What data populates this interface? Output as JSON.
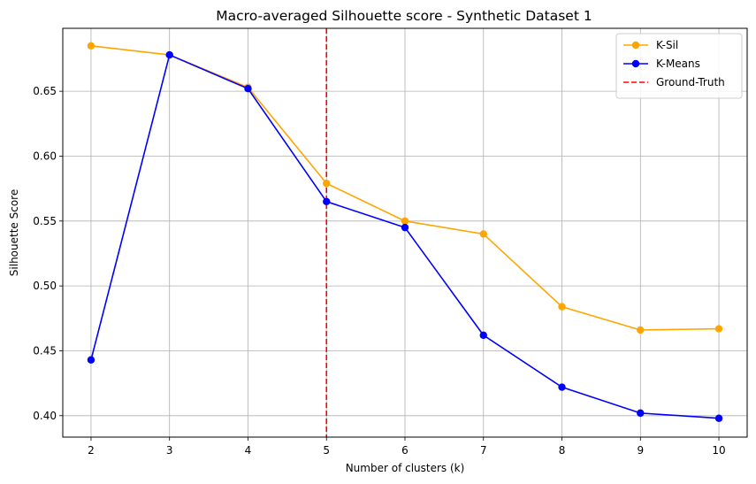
{
  "chart_data": {
    "type": "line",
    "title": "Macro-averaged Silhouette score - Synthetic Dataset 1",
    "xlabel": "Number of clusters (k)",
    "ylabel": "Silhouette Score",
    "x": [
      2,
      3,
      4,
      5,
      6,
      7,
      8,
      9,
      10
    ],
    "xticks": [
      "2",
      "3",
      "4",
      "5",
      "6",
      "7",
      "8",
      "9",
      "10"
    ],
    "yticks": [
      "0.40",
      "0.45",
      "0.50",
      "0.55",
      "0.60",
      "0.65"
    ],
    "ytick_values": [
      0.4,
      0.45,
      0.5,
      0.55,
      0.6,
      0.65
    ],
    "xlim": [
      1.64,
      10.36
    ],
    "ylim": [
      0.3835,
      0.6985
    ],
    "grid": true,
    "legend_position": "top-right",
    "series": [
      {
        "name": "K-Sil",
        "color": "#FFA500",
        "marker": "circle",
        "values": [
          0.685,
          0.678,
          0.653,
          0.579,
          0.55,
          0.54,
          0.484,
          0.466,
          0.467
        ]
      },
      {
        "name": "K-Means",
        "color": "#0000FF",
        "marker": "circle",
        "values": [
          0.443,
          0.678,
          0.652,
          0.565,
          0.545,
          0.462,
          0.422,
          0.402,
          0.398
        ]
      }
    ],
    "reference_lines": [
      {
        "name": "Ground-Truth",
        "orientation": "vertical",
        "x": 5,
        "color": "#FF0000",
        "style": "dashed"
      }
    ]
  }
}
